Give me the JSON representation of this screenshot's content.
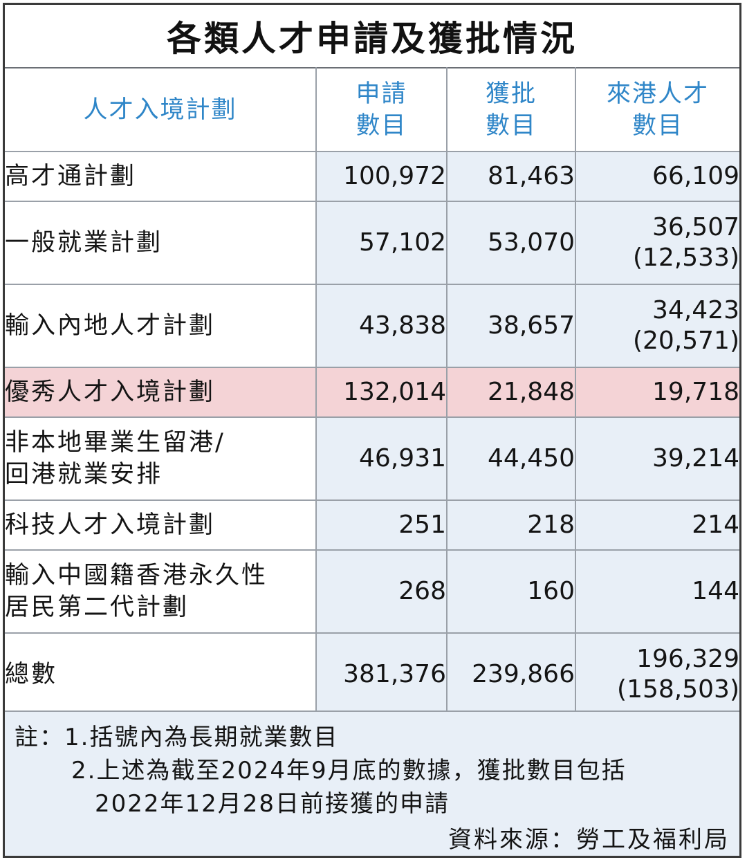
{
  "title": "各類人才申請及獲批情況",
  "headers": {
    "scheme_line1": "人才入境計劃",
    "applied_line1": "申請",
    "applied_line2": "數目",
    "approved_line1": "獲批",
    "approved_line2": "數目",
    "arrived_line1": "來港人才",
    "arrived_line2": "數目"
  },
  "rows": [
    {
      "name": [
        "高才通計劃"
      ],
      "applied": "100,972",
      "approved": "81,463",
      "arrived": [
        "66,109"
      ]
    },
    {
      "name": [
        "一般就業計劃"
      ],
      "applied": "57,102",
      "approved": "53,070",
      "arrived": [
        "36,507",
        "(12,533)"
      ]
    },
    {
      "name": [
        "輸入內地人才計劃"
      ],
      "applied": "43,838",
      "approved": "38,657",
      "arrived": [
        "34,423",
        "(20,571)"
      ]
    },
    {
      "name": [
        "優秀人才入境計劃"
      ],
      "applied": "132,014",
      "approved": "21,848",
      "arrived": [
        "19,718"
      ]
    },
    {
      "name": [
        "非本地畢業生留港/",
        "回港就業安排"
      ],
      "applied": "46,931",
      "approved": "44,450",
      "arrived": [
        "39,214"
      ]
    },
    {
      "name": [
        "科技人才入境計劃"
      ],
      "applied": "251",
      "approved": "218",
      "arrived": [
        "214"
      ]
    },
    {
      "name": [
        "輸入中國籍香港永久性",
        "居民第二代計劃"
      ],
      "applied": "268",
      "approved": "160",
      "arrived": [
        "144"
      ]
    },
    {
      "name": [
        "總數"
      ],
      "applied": "381,376",
      "approved": "239,866",
      "arrived": [
        "196,329",
        "(158,503)"
      ]
    }
  ],
  "notes": {
    "line1": "註：1.括號內為長期就業數目",
    "line2": "2.上述為截至2024年9月底的數據，獲批數目包括",
    "line3": "2022年12月28日前接獲的申請",
    "source": "資料來源：勞工及福利局"
  },
  "colors": {
    "header_text": "#2f86c8",
    "number_bg": "#e8eff7",
    "highlight_bg": "#f4d3d6",
    "grid_line": "#9aa0a8"
  }
}
